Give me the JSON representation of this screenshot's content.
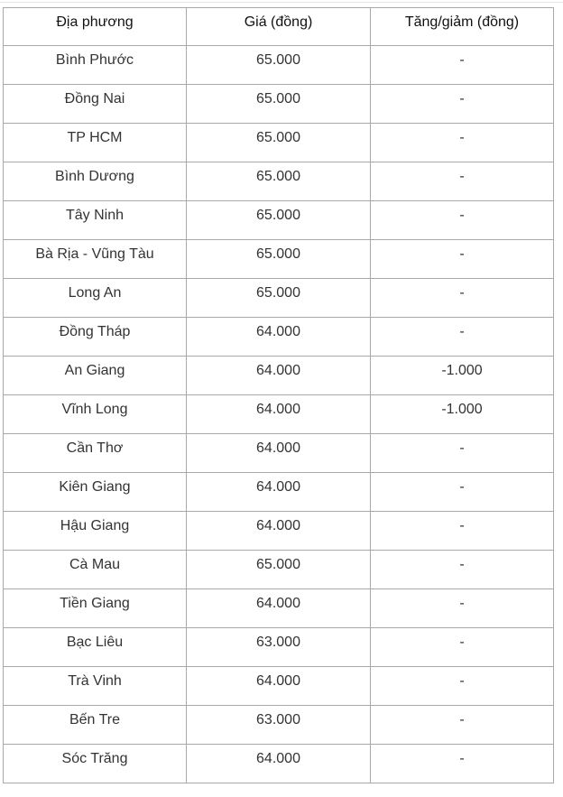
{
  "table": {
    "headers": [
      "Địa phương",
      "Giá (đồng)",
      "Tăng/giảm (đồng)"
    ],
    "rows": [
      [
        "Bình Phước",
        "65.000",
        "-"
      ],
      [
        "Đồng Nai",
        "65.000",
        "-"
      ],
      [
        "TP HCM",
        "65.000",
        "-"
      ],
      [
        "Bình Dương",
        "65.000",
        "-"
      ],
      [
        "Tây Ninh",
        "65.000",
        "-"
      ],
      [
        "Bà Rịa - Vũng Tàu",
        "65.000",
        "-"
      ],
      [
        "Long An",
        "65.000",
        "-"
      ],
      [
        "Đồng Tháp",
        "64.000",
        "-"
      ],
      [
        "An Giang",
        "64.000",
        "-1.000"
      ],
      [
        "Vĩnh Long",
        "64.000",
        "-1.000"
      ],
      [
        "Cần Thơ",
        "64.000",
        "-"
      ],
      [
        "Kiên Giang",
        "64.000",
        "-"
      ],
      [
        "Hậu Giang",
        "64.000",
        "-"
      ],
      [
        "Cà Mau",
        "65.000",
        "-"
      ],
      [
        "Tiền Giang",
        "64.000",
        "-"
      ],
      [
        "Bạc Liêu",
        "63.000",
        "-"
      ],
      [
        "Trà Vinh",
        "64.000",
        "-"
      ],
      [
        "Bến Tre",
        "63.000",
        "-"
      ],
      [
        "Sóc Trăng",
        "64.000",
        "-"
      ]
    ]
  }
}
